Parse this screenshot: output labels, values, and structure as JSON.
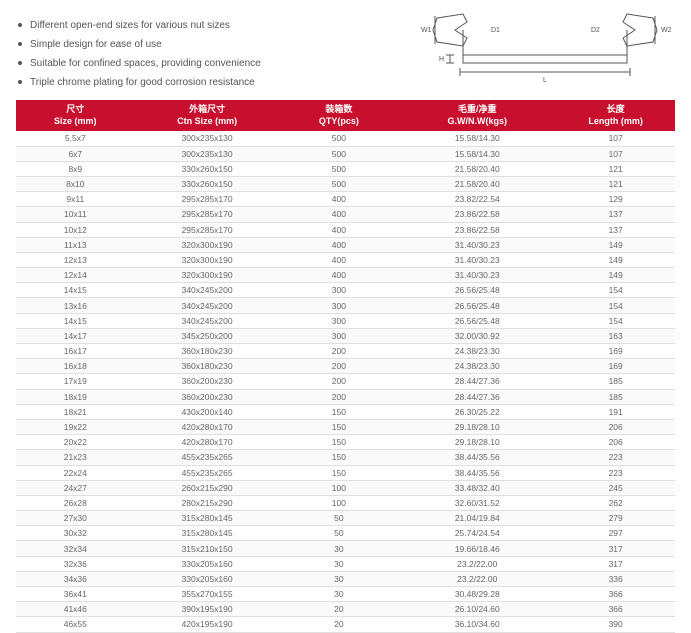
{
  "features": [
    "Different open-end sizes for various nut sizes",
    "Simple design for ease of use",
    "Suitable for confined spaces, providing convenience",
    "Triple chrome plating for good corrosion resistance"
  ],
  "diagram": {
    "labels": {
      "w1": "W1",
      "w2": "W2",
      "d1": "D1",
      "d2": "D2",
      "h": "H",
      "l": "L"
    },
    "stroke": "#555555"
  },
  "header_bg": "#c8102e",
  "header_fg": "#ffffff",
  "columns": [
    {
      "cn": "尺寸",
      "en": "Size (mm)"
    },
    {
      "cn": "外箱尺寸",
      "en": "Ctn Size (mm)"
    },
    {
      "cn": "装箱数",
      "en": "QTY(pcs)"
    },
    {
      "cn": "毛重/净重",
      "en": "G.W/N.W(kgs)"
    },
    {
      "cn": "长度",
      "en": "Length (mm)"
    }
  ],
  "rows": [
    [
      "5.5x7",
      "300x235x130",
      "500",
      "15.58/14.30",
      "107"
    ],
    [
      "6x7",
      "300x235x130",
      "500",
      "15.58/14.30",
      "107"
    ],
    [
      "8x9",
      "330x260x150",
      "500",
      "21.58/20.40",
      "121"
    ],
    [
      "8x10",
      "330x260x150",
      "500",
      "21.58/20.40",
      "121"
    ],
    [
      "9x11",
      "295x285x170",
      "400",
      "23.82/22.54",
      "129"
    ],
    [
      "10x11",
      "295x285x170",
      "400",
      "23.86/22.58",
      "137"
    ],
    [
      "10x12",
      "295x285x170",
      "400",
      "23.86/22.58",
      "137"
    ],
    [
      "11x13",
      "320x300x190",
      "400",
      "31.40/30.23",
      "149"
    ],
    [
      "12x13",
      "320x300x190",
      "400",
      "31.40/30.23",
      "149"
    ],
    [
      "12x14",
      "320x300x190",
      "400",
      "31.40/30.23",
      "149"
    ],
    [
      "14x15",
      "340x245x200",
      "300",
      "26.56/25.48",
      "154"
    ],
    [
      "13x16",
      "340x245x200",
      "300",
      "26.56/25.48",
      "154"
    ],
    [
      "14x15",
      "340x245x200",
      "300",
      "26.56/25.48",
      "154"
    ],
    [
      "14x17",
      "345x250x200",
      "300",
      "32.00/30.92",
      "163"
    ],
    [
      "16x17",
      "360x180x230",
      "200",
      "24.38/23.30",
      "169"
    ],
    [
      "16x18",
      "360x180x230",
      "200",
      "24.38/23.30",
      "169"
    ],
    [
      "17x19",
      "360x200x230",
      "200",
      "28.44/27.36",
      "185"
    ],
    [
      "18x19",
      "360x200x230",
      "200",
      "28.44/27.36",
      "185"
    ],
    [
      "18x21",
      "430x200x140",
      "150",
      "26.30/25.22",
      "191"
    ],
    [
      "19x22",
      "420x280x170",
      "150",
      "29.18/28.10",
      "206"
    ],
    [
      "20x22",
      "420x280x170",
      "150",
      "29.18/28.10",
      "206"
    ],
    [
      "21x23",
      "455x235x265",
      "150",
      "38.44/35.56",
      "223"
    ],
    [
      "22x24",
      "455x235x265",
      "150",
      "38.44/35.56",
      "223"
    ],
    [
      "24x27",
      "260x215x290",
      "100",
      "33.48/32.40",
      "245"
    ],
    [
      "26x28",
      "280x215x290",
      "100",
      "32.60/31.52",
      "262"
    ],
    [
      "27x30",
      "315x280x145",
      "50",
      "21.04/19.84",
      "279"
    ],
    [
      "30x32",
      "315x280x145",
      "50",
      "25.74/24.54",
      "297"
    ],
    [
      "32x34",
      "315x210x150",
      "30",
      "19.66/18.46",
      "317"
    ],
    [
      "32x36",
      "330x205x160",
      "30",
      "23.2/22.00",
      "317"
    ],
    [
      "34x36",
      "330x205x160",
      "30",
      "23.2/22.00",
      "336"
    ],
    [
      "36x41",
      "355x270x155",
      "30",
      "30.48/29.28",
      "366"
    ],
    [
      "41x46",
      "390x195x190",
      "20",
      "26.10/24.60",
      "366"
    ],
    [
      "46x55",
      "420x195x190",
      "20",
      "36.10/34.60",
      "390"
    ]
  ]
}
